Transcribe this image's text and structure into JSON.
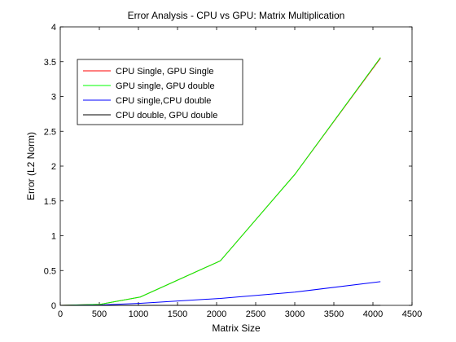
{
  "chart_data": {
    "type": "line",
    "title": "Error Analysis - CPU vs GPU: Matrix Multiplication",
    "xlabel": "Matrix Size",
    "ylabel": "Error (L2 Norm)",
    "xlim": [
      0,
      4500
    ],
    "ylim": [
      0,
      4
    ],
    "xticks": [
      0,
      500,
      1000,
      1500,
      2000,
      2500,
      3000,
      3500,
      4000,
      4500
    ],
    "yticks": [
      0,
      0.5,
      1,
      1.5,
      2,
      2.5,
      3,
      3.5,
      4
    ],
    "grid": false,
    "legend_position": "top-left",
    "series": [
      {
        "name": "CPU Single, GPU Single",
        "color": "#ff0000",
        "x": [
          0,
          512,
          1024,
          2048,
          3000,
          4096
        ],
        "y": [
          0,
          0.015,
          0.12,
          0.64,
          1.88,
          3.55
        ]
      },
      {
        "name": "GPU single, GPU double",
        "color": "#00ff00",
        "x": [
          0,
          512,
          1024,
          2048,
          3000,
          4096
        ],
        "y": [
          0,
          0.015,
          0.12,
          0.64,
          1.88,
          3.56
        ]
      },
      {
        "name": "CPU single,CPU double",
        "color": "#0000ff",
        "x": [
          0,
          512,
          1024,
          2048,
          3000,
          4096
        ],
        "y": [
          0,
          0.005,
          0.03,
          0.1,
          0.19,
          0.34
        ]
      },
      {
        "name": "CPU double, GPU double",
        "color": "#000000",
        "x": [
          0,
          512,
          1024,
          2048,
          3000,
          4096
        ],
        "y": [
          0,
          0,
          0,
          0,
          0,
          0
        ]
      }
    ]
  }
}
